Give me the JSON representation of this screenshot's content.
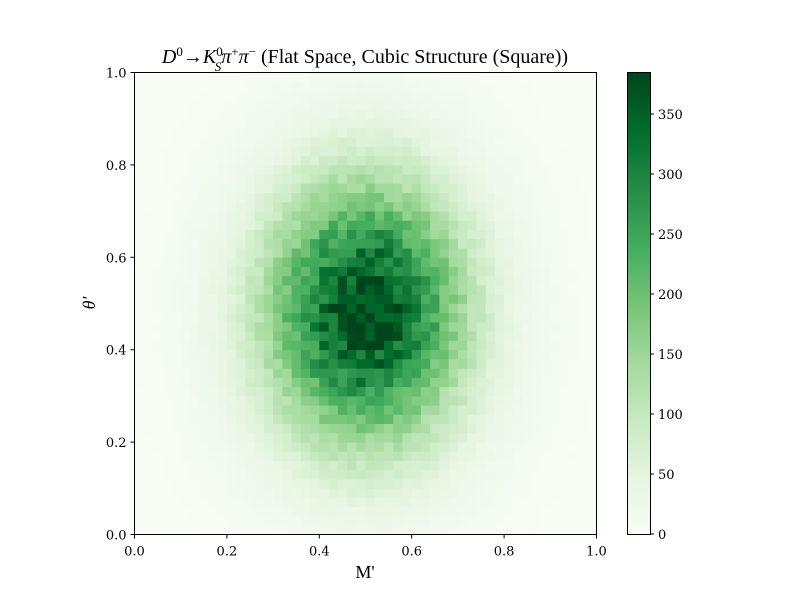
{
  "chart_data": {
    "type": "heatmap",
    "title": "D^0→K_S^0π^+π^- (Flat Space, Cubic Structure (Square))",
    "title_parts": {
      "particle": "D",
      "particle_sup": "0",
      "arrow": "→",
      "kaon": "K",
      "kaon_sup": "0",
      "kaon_sub": "S",
      "pion1": "π",
      "pion1_sup": "+",
      "pion2": "π",
      "pion2_sup": "−",
      "suffix": " (Flat Space, Cubic Structure (Square))"
    },
    "xlabel": "M'",
    "ylabel": "θ'",
    "xlim": [
      0,
      1
    ],
    "ylim": [
      0,
      1
    ],
    "xticks": [
      "0.0",
      "0.2",
      "0.4",
      "0.6",
      "0.8",
      "1.0"
    ],
    "yticks": [
      "0.0",
      "0.2",
      "0.4",
      "0.6",
      "0.8",
      "1.0"
    ],
    "colormap": "Greens",
    "colormap_stops": [
      "#f7fcf5",
      "#e5f5e0",
      "#c7e9c0",
      "#a1d99b",
      "#74c476",
      "#41ab5d",
      "#238b45",
      "#006d2c",
      "#00441b"
    ],
    "bins": [
      50,
      50
    ],
    "color_range": [
      0,
      385
    ],
    "colorbar_ticks": [
      "0",
      "50",
      "100",
      "150",
      "200",
      "250",
      "300",
      "350"
    ],
    "distribution": {
      "shape": "2D Gaussian-like",
      "peak_value": 385,
      "peak_center": [
        0.5,
        0.48
      ],
      "sigma_x": 0.15,
      "sigma_y": 0.2
    }
  }
}
